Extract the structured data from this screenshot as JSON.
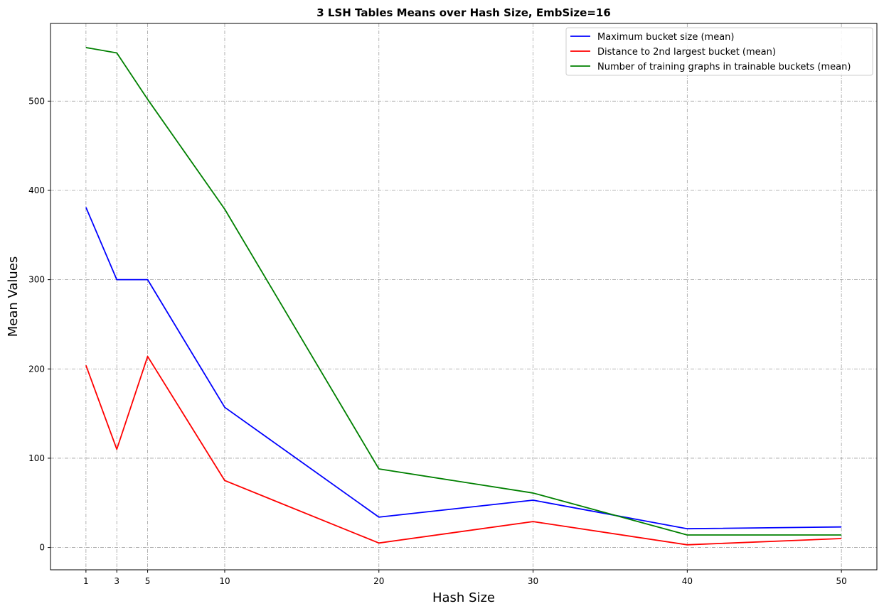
{
  "chart_data": {
    "type": "line",
    "title": "3 LSH Tables Means over Hash Size, EmbSize=16",
    "xlabel": "Hash Size",
    "ylabel": "Mean Values",
    "x": [
      1,
      3,
      5,
      10,
      20,
      30,
      40,
      50
    ],
    "xticks": [
      "1",
      "3",
      "5",
      "10",
      "20",
      "30",
      "40",
      "50"
    ],
    "yticks": [
      "0",
      "100",
      "200",
      "300",
      "400",
      "500"
    ],
    "xlim": [
      -1.3,
      52.3
    ],
    "ylim": [
      -25,
      587
    ],
    "grid": true,
    "legend_position": "top-right",
    "series": [
      {
        "name": "Maximum bucket size (mean)",
        "color": "#0000ff",
        "values": [
          381,
          300,
          300,
          157,
          34,
          53,
          21,
          23
        ]
      },
      {
        "name": "Distance to 2nd largest bucket (mean)",
        "color": "#ff0000",
        "values": [
          204,
          110,
          214,
          75,
          5,
          29,
          3,
          10
        ]
      },
      {
        "name": "Number of training graphs in trainable buckets (mean)",
        "color": "#008000",
        "values": [
          560,
          554,
          502,
          379,
          88,
          61,
          14,
          14
        ]
      }
    ]
  }
}
